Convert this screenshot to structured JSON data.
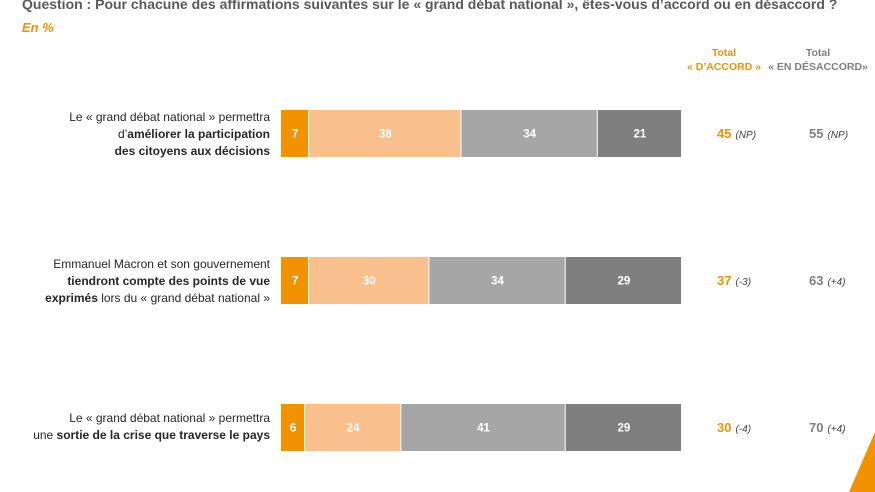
{
  "question": "Question : Pour chacune des affirmations suivantes sur le « grand débat national », êtes-vous d’accord ou en désaccord ?",
  "unit": "En %",
  "headers": {
    "accord": [
      "Total",
      "« D’ACCORD »"
    ],
    "desaccord": [
      "Total",
      "« EN DÉSACCORD»"
    ]
  },
  "rows": [
    {
      "label_html": "Le « grand débat national » permettra<br>d’<b>améliorer la participation</b><br><b>des citoyens aux décisions</b>",
      "total_accord": "45",
      "var_accord": "(NP)",
      "total_desaccord": "55",
      "var_desaccord": "(NP)"
    },
    {
      "label_html": "Emmanuel Macron et son gouvernement<br><b>tiendront compte des points de vue</b><br><b>exprimés</b> lors du « grand débat national »",
      "total_accord": "37",
      "var_accord": "(-3)",
      "total_desaccord": "63",
      "var_desaccord": "(+4)"
    },
    {
      "label_html": "Le « grand débat national » permettra<br>une <b>sortie de la crise que traverse le pays</b>",
      "total_accord": "30",
      "var_accord": "(-4)",
      "total_desaccord": "70",
      "var_desaccord": "(+4)"
    }
  ],
  "colors": {
    "seg1": "#f39200",
    "seg2": "#f9c08e",
    "seg3": "#a6a6a6",
    "seg4": "#7f7f7f"
  },
  "chart_data": {
    "type": "bar",
    "stacked": true,
    "orientation": "horizontal",
    "categories": [
      "Le « grand débat national » permettra d’améliorer la participation des citoyens aux décisions",
      "Emmanuel Macron et son gouvernement tiendront compte des points de vue exprimés lors du « grand débat national »",
      "Le « grand débat national » permettra une sortie de la crise que traverse le pays"
    ],
    "series": [
      {
        "values": [
          7,
          7,
          6
        ]
      },
      {
        "values": [
          38,
          30,
          24
        ]
      },
      {
        "values": [
          34,
          34,
          41
        ]
      },
      {
        "values": [
          21,
          29,
          29
        ]
      }
    ],
    "xlim": [
      0,
      100
    ],
    "title": "",
    "xlabel": "",
    "ylabel": ""
  }
}
